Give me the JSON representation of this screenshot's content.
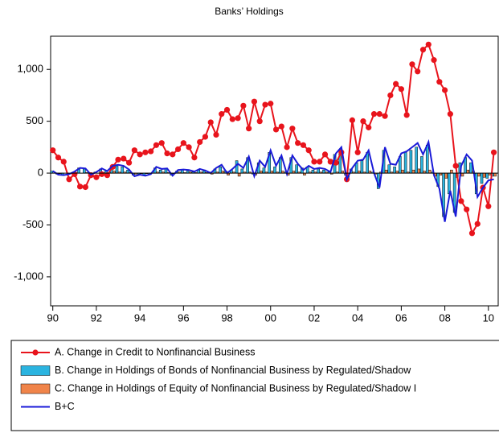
{
  "chart_data": {
    "type": "combo",
    "title": "Banks’ Holdings",
    "x": [
      1990,
      1990.25,
      1990.5,
      1990.75,
      1991,
      1991.25,
      1991.5,
      1991.75,
      1992,
      1992.25,
      1992.5,
      1992.75,
      1993,
      1993.25,
      1993.5,
      1993.75,
      1994,
      1994.25,
      1994.5,
      1994.75,
      1995,
      1995.25,
      1995.5,
      1995.75,
      1996,
      1996.25,
      1996.5,
      1996.75,
      1997,
      1997.25,
      1997.5,
      1997.75,
      1998,
      1998.25,
      1998.5,
      1998.75,
      1999,
      1999.25,
      1999.5,
      1999.75,
      2000,
      2000.25,
      2000.5,
      2000.75,
      2001,
      2001.25,
      2001.5,
      2001.75,
      2002,
      2002.25,
      2002.5,
      2002.75,
      2003,
      2003.25,
      2003.5,
      2003.75,
      2004,
      2004.25,
      2004.5,
      2004.75,
      2005,
      2005.25,
      2005.5,
      2005.75,
      2006,
      2006.25,
      2006.5,
      2006.75,
      2007,
      2007.25,
      2007.5,
      2007.75,
      2008,
      2008.25,
      2008.5,
      2008.75,
      2009,
      2009.25,
      2009.5,
      2009.75,
      2010,
      2010.25
    ],
    "series": [
      {
        "name": "A. Change in Credit to Nonfinancial Business",
        "type": "line",
        "markers": true,
        "color": "#e8141c",
        "values": [
          220,
          150,
          110,
          -60,
          -10,
          -130,
          -135,
          -20,
          -40,
          -10,
          -20,
          60,
          130,
          140,
          100,
          220,
          180,
          200,
          210,
          270,
          290,
          190,
          180,
          230,
          290,
          250,
          150,
          300,
          350,
          490,
          370,
          570,
          610,
          520,
          530,
          650,
          430,
          690,
          500,
          660,
          670,
          420,
          450,
          250,
          430,
          290,
          270,
          220,
          110,
          110,
          180,
          110,
          100,
          200,
          -60,
          510,
          200,
          500,
          440,
          570,
          570,
          550,
          750,
          860,
          810,
          560,
          1050,
          980,
          1190,
          1240,
          1090,
          880,
          800,
          570,
          70,
          -270,
          -350,
          -580,
          -490,
          -140,
          -320,
          200
        ]
      },
      {
        "name": "B. Change in Holdings of Bonds of Nonfinancial Business by Regulated/Shadow",
        "type": "bar",
        "color": "#2bb4e0",
        "values": [
          20,
          -10,
          -20,
          -10,
          10,
          50,
          40,
          -10,
          10,
          40,
          20,
          50,
          70,
          60,
          30,
          -20,
          -10,
          -20,
          -10,
          50,
          30,
          40,
          -20,
          20,
          30,
          20,
          10,
          30,
          20,
          10,
          40,
          60,
          20,
          30,
          120,
          40,
          150,
          -10,
          100,
          50,
          200,
          60,
          150,
          10,
          150,
          80,
          50,
          60,
          30,
          40,
          30,
          20,
          180,
          230,
          -20,
          40,
          100,
          120,
          200,
          10,
          -150,
          220,
          80,
          60,
          160,
          200,
          220,
          250,
          160,
          270,
          10,
          -130,
          -420,
          -200,
          -380,
          100,
          150,
          100,
          -200,
          -100,
          -50,
          -30
        ]
      },
      {
        "name": "C. Change in Holdings of Equity of Nonfinancial Business by Regulated/Shadow I",
        "type": "bar",
        "color": "#f0844a",
        "values": [
          0,
          -5,
          0,
          0,
          5,
          0,
          5,
          -5,
          0,
          5,
          0,
          20,
          10,
          10,
          5,
          -10,
          -5,
          -5,
          0,
          10,
          10,
          5,
          -5,
          10,
          5,
          10,
          5,
          10,
          5,
          -10,
          10,
          20,
          -20,
          10,
          -30,
          10,
          10,
          -20,
          20,
          10,
          20,
          10,
          20,
          -20,
          20,
          10,
          -20,
          10,
          10,
          10,
          10,
          -10,
          10,
          20,
          -40,
          10,
          20,
          10,
          20,
          -10,
          10,
          30,
          10,
          20,
          30,
          10,
          30,
          40,
          20,
          30,
          -30,
          -20,
          -50,
          30,
          -40,
          -30,
          30,
          20,
          -30,
          -40,
          -20,
          -30
        ]
      },
      {
        "name": "B+C",
        "type": "line",
        "markers": false,
        "color": "#1a1ad8",
        "values": [
          20,
          -15,
          -20,
          -10,
          15,
          50,
          45,
          -15,
          10,
          45,
          20,
          70,
          80,
          70,
          35,
          -30,
          -15,
          -25,
          -10,
          60,
          40,
          45,
          -25,
          30,
          35,
          30,
          15,
          40,
          25,
          0,
          50,
          80,
          0,
          40,
          90,
          50,
          160,
          -30,
          120,
          60,
          220,
          70,
          170,
          -10,
          170,
          90,
          30,
          70,
          40,
          50,
          40,
          10,
          190,
          250,
          -60,
          50,
          120,
          130,
          220,
          0,
          -140,
          250,
          90,
          80,
          190,
          210,
          250,
          290,
          180,
          300,
          -20,
          -150,
          -470,
          -170,
          -420,
          70,
          180,
          120,
          -230,
          -140,
          -70,
          -60
        ]
      }
    ],
    "xlim": [
      1989.9,
      2010.45
    ],
    "xticks": [
      {
        "value": 1990,
        "label": "90"
      },
      {
        "value": 1992,
        "label": "92"
      },
      {
        "value": 1994,
        "label": "94"
      },
      {
        "value": 1996,
        "label": "96"
      },
      {
        "value": 1998,
        "label": "98"
      },
      {
        "value": 2000,
        "label": "00"
      },
      {
        "value": 2002,
        "label": "02"
      },
      {
        "value": 2004,
        "label": "04"
      },
      {
        "value": 2006,
        "label": "06"
      },
      {
        "value": 2008,
        "label": "08"
      },
      {
        "value": 2010,
        "label": "10"
      }
    ],
    "ylim": [
      -1280,
      1320
    ],
    "yticks": [
      {
        "value": -1000,
        "label": "-1,000"
      },
      -500,
      0,
      500,
      {
        "value": 1000,
        "label": "1,000"
      }
    ],
    "grid": false
  }
}
